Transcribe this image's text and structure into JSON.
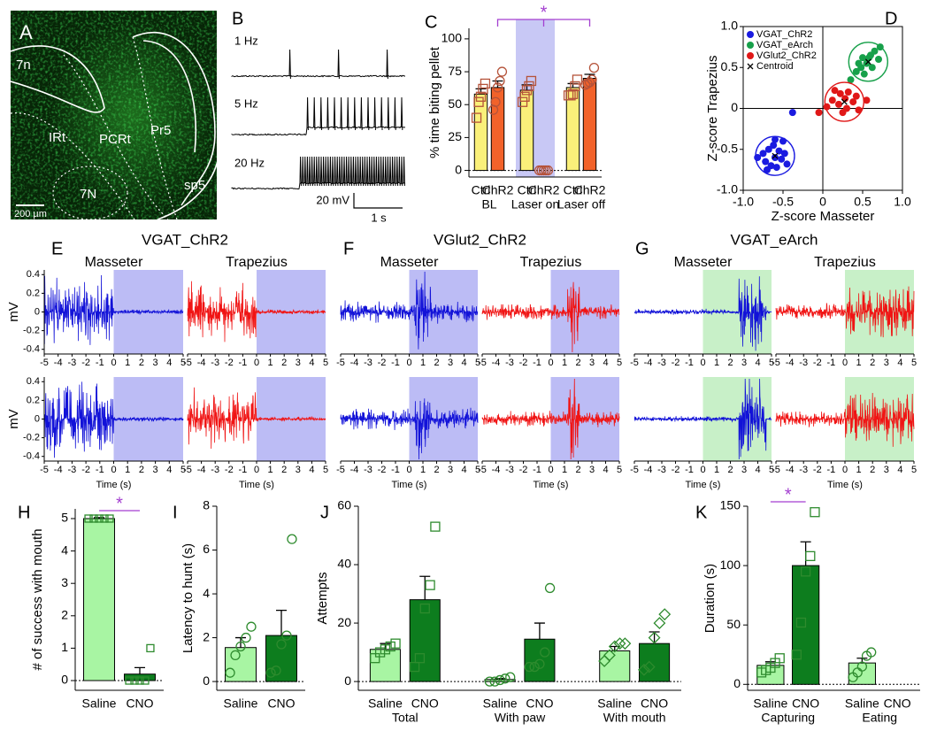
{
  "panel_a": {
    "label": "A",
    "regions": [
      "7n",
      "IRt",
      "PCRt",
      "Pr5",
      "7N",
      "sp5"
    ],
    "scale_bar": "200 µm"
  },
  "panel_b": {
    "label": "B",
    "rates": [
      "1 Hz",
      "5 Hz",
      "20 Hz"
    ],
    "scale_y": "20 mV",
    "scale_x": "1 s"
  },
  "chart_data": [
    {
      "type": "bar",
      "panel": "C",
      "ylabel": "% time biting pellet",
      "categories": [
        "Ctrl",
        "ChR2",
        "Ctrl",
        "ChR2",
        "Ctrl",
        "ChR2"
      ],
      "groups": [
        "BL",
        "Laser on",
        "Laser off"
      ],
      "values": [
        58,
        63,
        61,
        0,
        63,
        70
      ],
      "errors": [
        4,
        5,
        4,
        0,
        3,
        3
      ],
      "points": [
        [
          40,
          52,
          56,
          62,
          66
        ],
        [
          46,
          52,
          63,
          68,
          75
        ],
        [
          52,
          56,
          61,
          64,
          68
        ],
        [
          0,
          0,
          0,
          0,
          0
        ],
        [
          57,
          57,
          58,
          64,
          69
        ],
        [
          65,
          66,
          67,
          69,
          78
        ]
      ],
      "colors": [
        "#faf07a",
        "#f2622a",
        "#faf07a",
        "#f2622a",
        "#faf07a",
        "#f2622a"
      ],
      "markers": [
        "square",
        "circle",
        "square",
        "circle",
        "square",
        "circle"
      ],
      "point_color": "#b5533a",
      "ylim": [
        -5,
        108
      ],
      "yticks": [
        0,
        25,
        50,
        75,
        100
      ],
      "shaded_group": 1,
      "shade_color": "#c8c8f5",
      "significance": [
        {
          "from": 1,
          "to": 5,
          "label": "*"
        }
      ]
    },
    {
      "type": "scatter",
      "panel": "D",
      "xlabel": "Z-score Masseter",
      "ylabel": "Z-score Trapezius",
      "xlim": [
        -1,
        1
      ],
      "ylim": [
        -1,
        1
      ],
      "xticks": [
        {
          "value": -1,
          "label": "-1.0"
        },
        -0.5,
        0,
        0.5,
        {
          "value": 1,
          "label": "1.0"
        }
      ],
      "yticks": [
        {
          "value": -1,
          "label": "-1.0"
        },
        -0.5,
        0,
        0.5,
        {
          "value": 1,
          "label": "1.0"
        }
      ],
      "centroid_label": "Centroid",
      "series": [
        {
          "name": "VGAT_ChR2",
          "color": "#1a1ae0",
          "x": [
            -0.82,
            -0.75,
            -0.72,
            -0.68,
            -0.65,
            -0.62,
            -0.6,
            -0.58,
            -0.55,
            -0.52,
            -0.5,
            -0.48,
            -0.45,
            -0.6,
            -0.38,
            -0.7
          ],
          "y": [
            -0.6,
            -0.55,
            -0.65,
            -0.5,
            -0.7,
            -0.45,
            -0.6,
            -0.72,
            -0.52,
            -0.62,
            -0.4,
            -0.55,
            -0.68,
            -0.38,
            -0.05,
            -0.75
          ],
          "centroid": [
            -0.6,
            -0.58
          ]
        },
        {
          "name": "VGAT_eArch",
          "color": "#17a04a",
          "x": [
            0.35,
            0.42,
            0.48,
            0.52,
            0.55,
            0.58,
            0.62,
            0.65,
            0.7,
            0.72,
            0.6,
            0.5,
            0.45
          ],
          "y": [
            0.35,
            0.45,
            0.5,
            0.42,
            0.55,
            0.62,
            0.5,
            0.7,
            0.6,
            0.75,
            0.65,
            0.62,
            0.55
          ],
          "centroid": [
            0.57,
            0.57
          ]
        },
        {
          "name": "VGlut2_ChR2",
          "color": "#e01818",
          "x": [
            -0.05,
            0.05,
            0.12,
            0.2,
            0.22,
            0.28,
            0.3,
            0.32,
            0.38,
            0.42,
            0.45,
            0.55,
            0.25,
            0.15
          ],
          "y": [
            -0.05,
            0.02,
            0.1,
            0.05,
            0.18,
            0.12,
            0.0,
            0.2,
            0.08,
            0.15,
            -0.02,
            0.1,
            -0.05,
            0.22
          ],
          "centroid": [
            0.27,
            0.08
          ]
        }
      ]
    },
    {
      "type": "trace",
      "panel": "E",
      "title": "VGAT_ChR2",
      "subplots": [
        "Masseter",
        "Trapezius"
      ],
      "ylabel": "mV",
      "xlabel": "Time (s)",
      "xlim": [
        -5,
        5
      ],
      "xticks": [
        -5,
        -4,
        -3,
        -2,
        -1,
        0,
        1,
        2,
        3,
        4,
        5
      ],
      "ylim": [
        -0.45,
        0.45
      ],
      "yticks": [
        -0.4,
        -0.2,
        0,
        0.2,
        0.4
      ],
      "shade": [
        0,
        5
      ],
      "shade_color": "#bcbcf5",
      "colors": [
        "#1212d8",
        "#f01414"
      ]
    },
    {
      "type": "trace",
      "panel": "F",
      "title": "VGlut2_ChR2",
      "subplots": [
        "Masseter",
        "Trapezius"
      ],
      "xlabel": "Time (s)",
      "xlim": [
        -5,
        5
      ],
      "xticks": [
        -5,
        -4,
        -3,
        -2,
        -1,
        0,
        1,
        2,
        3,
        4,
        5
      ],
      "shade": [
        0,
        5
      ],
      "shade_color": "#bcbcf5",
      "colors": [
        "#1212d8",
        "#f01414"
      ]
    },
    {
      "type": "trace",
      "panel": "G",
      "title": "VGAT_eArch",
      "subplots": [
        "Masseter",
        "Trapezius"
      ],
      "xlabel": "Time (s)",
      "xlim": [
        -5,
        5
      ],
      "xticks": [
        -5,
        -4,
        -3,
        -2,
        -1,
        0,
        1,
        2,
        3,
        4,
        5
      ],
      "shade": [
        0,
        5
      ],
      "shade_color": "#c8f0c8",
      "colors": [
        "#1212d8",
        "#f01414"
      ]
    },
    {
      "type": "bar",
      "panel": "H",
      "ylabel": "# of success with mouth",
      "categories": [
        "Saline",
        "CNO"
      ],
      "values": [
        5,
        0.2
      ],
      "errors": [
        0.03,
        0.2
      ],
      "points": [
        [
          5,
          5,
          5,
          5,
          5
        ],
        [
          0,
          0,
          0,
          0,
          1
        ]
      ],
      "colors": [
        "#a8f5a3",
        "#0d7d1e"
      ],
      "markers": [
        "square",
        "square"
      ],
      "point_color": "#2e8b2e",
      "ylim": [
        -0.3,
        5.3
      ],
      "yticks": [
        0,
        1,
        2,
        3,
        4,
        5
      ],
      "significance": [
        {
          "from": 0,
          "to": 1,
          "label": "*"
        }
      ]
    },
    {
      "type": "bar",
      "panel": "I",
      "ylabel": "Latency to hunt (s)",
      "categories": [
        "Saline",
        "CNO"
      ],
      "values": [
        1.55,
        2.1
      ],
      "errors": [
        0.45,
        1.15
      ],
      "points": [
        [
          0.4,
          1.2,
          1.6,
          2.0,
          2.5
        ],
        [
          0.4,
          0.5,
          1.7,
          2.1,
          6.5
        ]
      ],
      "colors": [
        "#a8f5a3",
        "#0d7d1e"
      ],
      "markers": [
        "circle",
        "circle"
      ],
      "point_color": "#2e8b2e",
      "ylim": [
        -0.4,
        8
      ],
      "yticks": [
        0,
        2,
        4,
        6,
        8
      ]
    },
    {
      "type": "bar",
      "panel": "J",
      "ylabel": "Attempts",
      "categories": [
        "Saline",
        "CNO",
        "Saline",
        "CNO",
        "Saline",
        "CNO"
      ],
      "groups": [
        "Total",
        "With paw",
        "With mouth"
      ],
      "values": [
        11,
        28,
        0.7,
        14.5,
        10.5,
        13
      ],
      "errors": [
        2,
        8,
        0.3,
        5.5,
        1.5,
        4
      ],
      "points": [
        [
          8,
          10,
          11,
          12,
          13
        ],
        [
          5,
          8,
          25,
          33,
          53
        ],
        [
          0,
          0,
          0.5,
          1,
          1.5
        ],
        [
          5,
          5,
          6,
          10,
          32
        ],
        [
          7,
          9,
          12,
          13,
          13
        ],
        [
          4,
          5,
          15,
          20,
          23
        ]
      ],
      "colors": [
        "#a8f5a3",
        "#0d7d1e",
        "#a8f5a3",
        "#0d7d1e",
        "#a8f5a3",
        "#0d7d1e"
      ],
      "markers": [
        "square",
        "square",
        "circle",
        "circle",
        "diamond",
        "diamond"
      ],
      "point_color": "#2e8b2e",
      "ylim": [
        -3,
        60
      ],
      "yticks": [
        0,
        20,
        40,
        60
      ]
    },
    {
      "type": "bar",
      "panel": "K",
      "ylabel": "Duration (s)",
      "categories": [
        "Saline",
        "CNO",
        "Saline",
        "CNO"
      ],
      "groups": [
        "Capturing",
        "Eating"
      ],
      "values": [
        16,
        100,
        18,
        null
      ],
      "errors": [
        3,
        20,
        4,
        null
      ],
      "points": [
        [
          10,
          12,
          14,
          18,
          22
        ],
        [
          25,
          52,
          95,
          108,
          145
        ],
        [
          6,
          10,
          15,
          24,
          27
        ],
        []
      ],
      "colors": [
        "#a8f5a3",
        "#0d7d1e",
        "#a8f5a3",
        "#0d7d1e"
      ],
      "markers": [
        "square",
        "square",
        "circle",
        "circle"
      ],
      "point_color": "#2e8b2e",
      "ylim": [
        -5,
        150
      ],
      "yticks": [
        0,
        50,
        100,
        150
      ],
      "significance": [
        {
          "from": 0,
          "to": 1,
          "label": "*"
        }
      ]
    }
  ]
}
